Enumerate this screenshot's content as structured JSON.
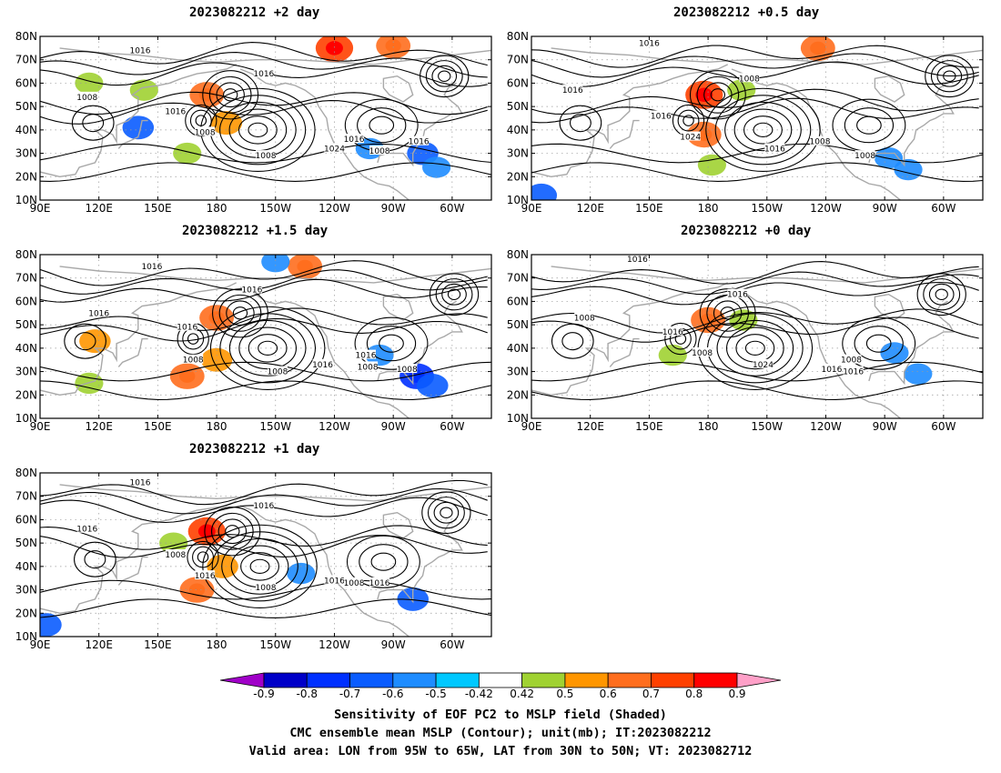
{
  "panels": [
    {
      "title": "2023082212 +2 day",
      "contour_labels": [
        "1016",
        "1008",
        "1016",
        "1016",
        "1008",
        "1008",
        "1024",
        "1008",
        "1016",
        "1016"
      ],
      "shading": [
        {
          "lon": 140,
          "lat": 41,
          "v": -0.6
        },
        {
          "lon": 175,
          "lat": 55,
          "v": 0.7
        },
        {
          "lon": 185,
          "lat": 43,
          "v": 0.6
        },
        {
          "lon": 165,
          "lat": 30,
          "v": 0.5
        },
        {
          "lon": 240,
          "lat": 75,
          "v": 0.8
        },
        {
          "lon": 270,
          "lat": 76,
          "v": 0.7
        },
        {
          "lon": 285,
          "lat": 30,
          "v": -0.6
        },
        {
          "lon": 292,
          "lat": 24,
          "v": -0.5
        },
        {
          "lon": 258,
          "lat": 32,
          "v": -0.5
        },
        {
          "lon": 115,
          "lat": 60,
          "v": 0.5
        },
        {
          "lon": 143,
          "lat": 57,
          "v": 0.5
        }
      ]
    },
    {
      "title": "2023082212 +0.5 day",
      "contour_labels": [
        "1016",
        "1016",
        "1008",
        "1016",
        "1024",
        "1016",
        "1008",
        "1008"
      ],
      "shading": [
        {
          "lon": 178,
          "lat": 55,
          "v": 0.8
        },
        {
          "lon": 178,
          "lat": 38,
          "v": 0.7
        },
        {
          "lon": 182,
          "lat": 25,
          "v": 0.5
        },
        {
          "lon": 236,
          "lat": 75,
          "v": 0.7
        },
        {
          "lon": 197,
          "lat": 57,
          "v": 0.5
        },
        {
          "lon": 95,
          "lat": 12,
          "v": -0.6
        },
        {
          "lon": 272,
          "lat": 28,
          "v": -0.5
        },
        {
          "lon": 282,
          "lat": 23,
          "v": -0.5
        }
      ]
    },
    {
      "title": "2023082212 +1.5 day",
      "contour_labels": [
        "1016",
        "1016",
        "1016",
        "1016",
        "1008",
        "1008",
        "1016",
        "1008",
        "1016",
        "1008"
      ],
      "shading": [
        {
          "lon": 165,
          "lat": 28,
          "v": 0.7
        },
        {
          "lon": 180,
          "lat": 35,
          "v": 0.6
        },
        {
          "lon": 180,
          "lat": 53,
          "v": 0.7
        },
        {
          "lon": 282,
          "lat": 28,
          "v": -0.7
        },
        {
          "lon": 290,
          "lat": 24,
          "v": -0.6
        },
        {
          "lon": 263,
          "lat": 37,
          "v": -0.5
        },
        {
          "lon": 225,
          "lat": 75,
          "v": 0.7
        },
        {
          "lon": 210,
          "lat": 77,
          "v": -0.5
        },
        {
          "lon": 115,
          "lat": 25,
          "v": 0.5
        },
        {
          "lon": 118,
          "lat": 43,
          "v": 0.6
        }
      ]
    },
    {
      "title": "2023082212 +0 day",
      "contour_labels": [
        "1016",
        "1008",
        "1016",
        "1016",
        "1008",
        "1024",
        "1016",
        "1016",
        "1008"
      ],
      "shading": [
        {
          "lon": 180,
          "lat": 52,
          "v": 0.7
        },
        {
          "lon": 275,
          "lat": 38,
          "v": -0.5
        },
        {
          "lon": 287,
          "lat": 29,
          "v": -0.5
        },
        {
          "lon": 162,
          "lat": 37,
          "v": 0.5
        },
        {
          "lon": 198,
          "lat": 52,
          "v": 0.5
        }
      ]
    },
    {
      "title": "2023082212 +1 day",
      "contour_labels": [
        "1016",
        "1016",
        "1016",
        "1008",
        "1016",
        "1008",
        "1016",
        "1016",
        "1008"
      ],
      "shading": [
        {
          "lon": 175,
          "lat": 55,
          "v": 0.8
        },
        {
          "lon": 170,
          "lat": 30,
          "v": 0.7
        },
        {
          "lon": 183,
          "lat": 40,
          "v": 0.6
        },
        {
          "lon": 280,
          "lat": 26,
          "v": -0.6
        },
        {
          "lon": 223,
          "lat": 37,
          "v": -0.5
        },
        {
          "lon": 93,
          "lat": 15,
          "v": -0.6
        },
        {
          "lon": 158,
          "lat": 50,
          "v": 0.5
        }
      ]
    }
  ],
  "axes": {
    "lat_ticks": [
      "10N",
      "20N",
      "30N",
      "40N",
      "50N",
      "60N",
      "70N",
      "80N"
    ],
    "lon_ticks": [
      "90E",
      "120E",
      "150E",
      "180",
      "150W",
      "120W",
      "90W",
      "60W"
    ],
    "lon_range": [
      90,
      320
    ],
    "lat_range": [
      10,
      80
    ]
  },
  "colorbar": {
    "ticks": [
      "-0.9",
      "-0.8",
      "-0.7",
      "-0.6",
      "-0.5",
      "-0.42",
      "0.42",
      "0.5",
      "0.6",
      "0.7",
      "0.8",
      "0.9"
    ],
    "colors": [
      "#a000c8",
      "#0000c8",
      "#0030ff",
      "#0a5cff",
      "#1e8cff",
      "#00c8ff",
      "#ffffff",
      "#a0d232",
      "#ff9600",
      "#ff6e1e",
      "#ff4000",
      "#ff0000",
      "#ffa0c8"
    ]
  },
  "caption": {
    "line1": "Sensitivity of EOF PC2 to MSLP field (Shaded)",
    "line2": "CMC ensemble mean MSLP (Contour); unit(mb); IT:2023082212",
    "line3": "Valid area: LON from 95W to 65W, LAT from 30N to 50N; VT: 2023082712"
  }
}
